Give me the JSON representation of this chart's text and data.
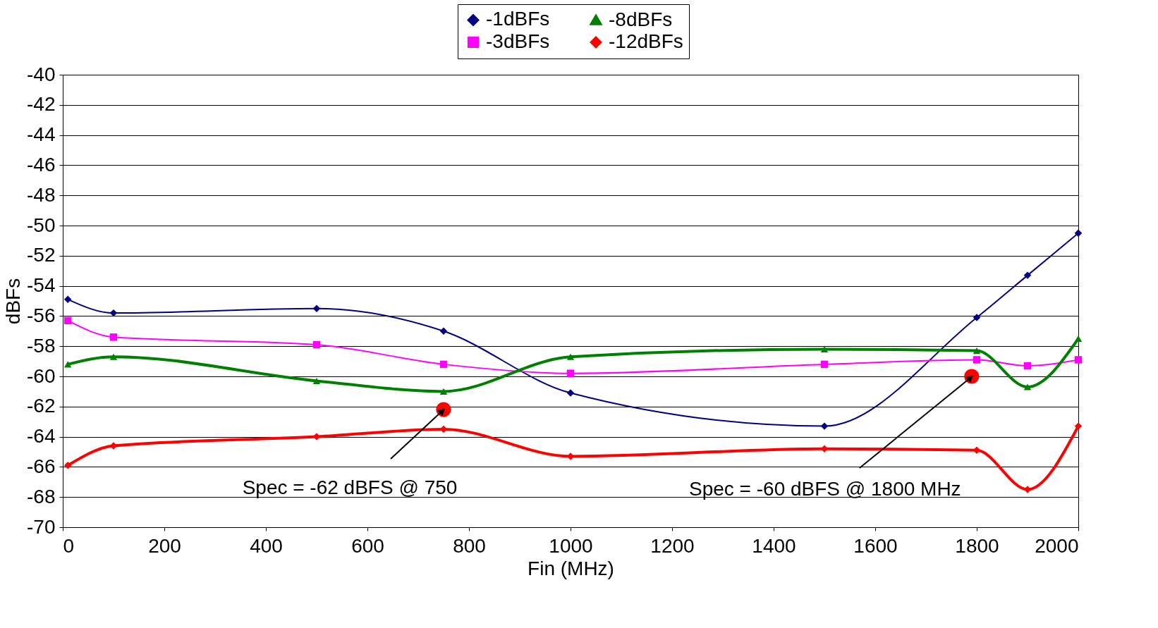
{
  "chart_data": {
    "type": "line",
    "xlabel": "Fin (MHz)",
    "ylabel": "dBFs",
    "x": [
      10,
      100,
      500,
      750,
      1000,
      1500,
      1800,
      1900,
      2000
    ],
    "series": [
      {
        "name": "-1dBFs",
        "color": "#000080",
        "marker": "diamond",
        "values": [
          -54.9,
          -55.8,
          -55.5,
          -57.0,
          -61.1,
          -63.3,
          -56.1,
          -53.3,
          -50.5
        ]
      },
      {
        "name": "-3dBFs",
        "color": "#ff00ff",
        "marker": "square",
        "values": [
          -56.3,
          -57.4,
          -57.9,
          -59.2,
          -59.8,
          -59.2,
          -58.9,
          -59.3,
          -58.9
        ]
      },
      {
        "name": "-8dBFs",
        "color": "#008000",
        "marker": "triangle",
        "values": [
          -59.2,
          -58.7,
          -60.3,
          -61.0,
          -58.7,
          -58.2,
          -58.3,
          -60.7,
          -57.5
        ]
      },
      {
        "name": "-12dBFs",
        "color": "#ff0000",
        "marker": "diamond",
        "values": [
          -65.9,
          -64.6,
          -64.0,
          -63.5,
          -65.3,
          -64.8,
          -64.9,
          -67.5,
          -63.3
        ]
      },
      {
        "type": "scatter",
        "color": "#ff0000",
        "marker": "circle",
        "x": [
          750,
          1790
        ],
        "values": [
          -62.2,
          -60.0
        ]
      }
    ],
    "annotations": [
      {
        "text": "Spec = -62 dBFS @ 750",
        "x": 750,
        "y": -62.2
      },
      {
        "text": "Spec = -60 dBFS @ 1800 MHz",
        "x": 1790,
        "y": -60.0
      }
    ],
    "xlim": [
      0,
      2000
    ],
    "xticks": [
      0,
      200,
      400,
      600,
      800,
      1000,
      1200,
      1400,
      1600,
      1800,
      2000
    ],
    "ylim": [
      -70,
      -40
    ],
    "yticks": [
      -70,
      -68,
      -66,
      -64,
      -62,
      -60,
      -58,
      -56,
      -54,
      -52,
      -50,
      -48,
      -46,
      -44,
      -42,
      -40
    ],
    "grid": "y",
    "legend": "top",
    "line_style": "solid"
  }
}
